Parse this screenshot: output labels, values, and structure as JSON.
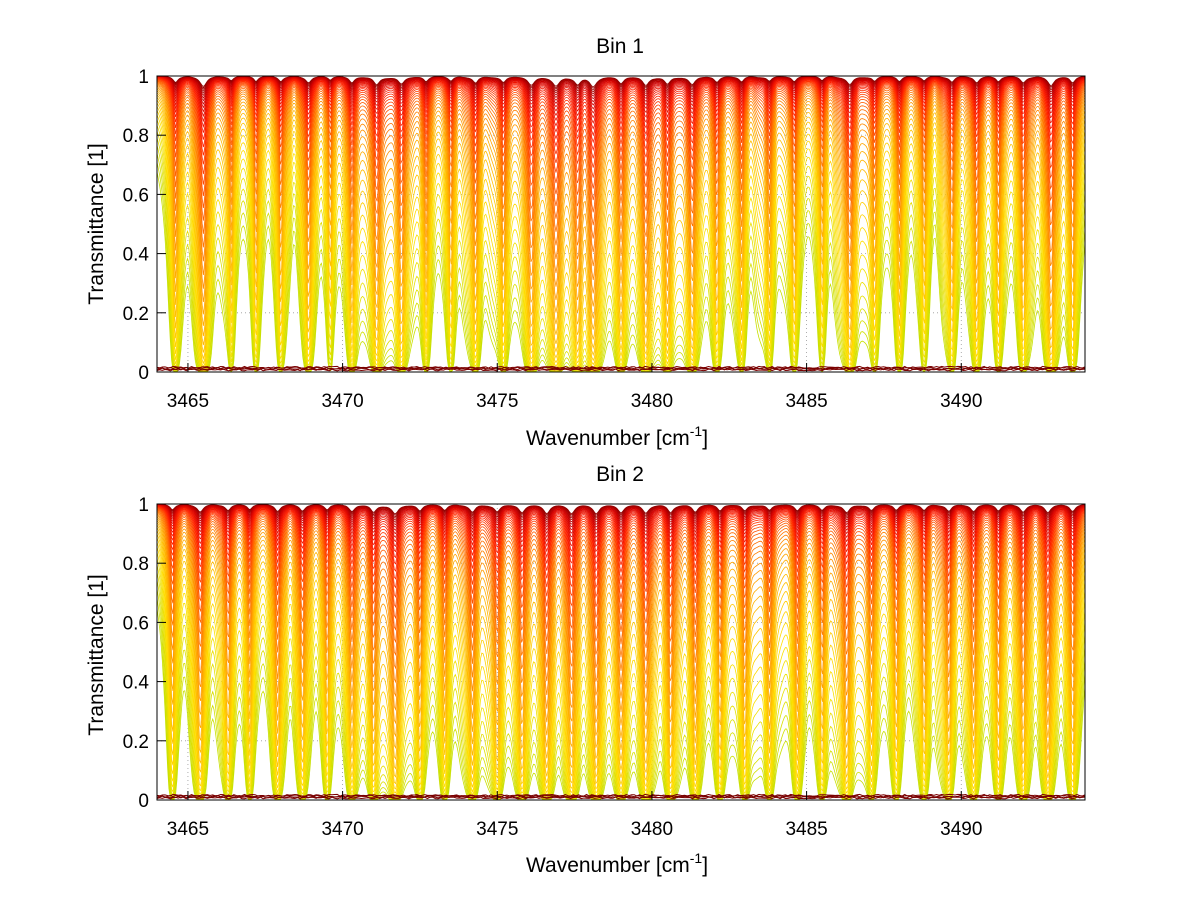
{
  "chart_data": [
    {
      "type": "line",
      "title": "Bin 1",
      "xlabel_main": "Wavenumber [cm",
      "xlabel_sup": "-1",
      "xlabel_close": "]",
      "ylabel": "Transmittance [1]",
      "xlim": [
        3464,
        3494
      ],
      "ylim": [
        0,
        1
      ],
      "xticks": [
        3465,
        3470,
        3475,
        3480,
        3485,
        3490
      ],
      "yticks": [
        0,
        0.2,
        0.4,
        0.6,
        0.8,
        1
      ],
      "ytick_labels": [
        "0",
        "0.2",
        "0.4",
        "0.6",
        "0.8",
        "1"
      ],
      "grid": "dotted",
      "n_series": 48,
      "colormap": [
        "#8b0000",
        "#d10000",
        "#ff2000",
        "#ff6a00",
        "#ffb000",
        "#ffe000",
        "#c8e000"
      ],
      "absorption_lines": [
        {
          "x": 3464.6,
          "depth": 0.5,
          "width": 0.09
        },
        {
          "x": 3465.5,
          "depth": 0.8,
          "width": 0.12
        },
        {
          "x": 3466.4,
          "depth": 0.35,
          "width": 0.08
        },
        {
          "x": 3467.2,
          "depth": 0.45,
          "width": 0.08
        },
        {
          "x": 3468.0,
          "depth": 0.4,
          "width": 0.08
        },
        {
          "x": 3468.9,
          "depth": 0.5,
          "width": 0.1
        },
        {
          "x": 3469.6,
          "depth": 0.3,
          "width": 0.08
        },
        {
          "x": 3470.3,
          "depth": 0.55,
          "width": 0.1
        },
        {
          "x": 3471.1,
          "depth": 0.7,
          "width": 0.12
        },
        {
          "x": 3471.9,
          "depth": 0.65,
          "width": 0.12
        },
        {
          "x": 3472.7,
          "depth": 0.45,
          "width": 0.09
        },
        {
          "x": 3473.5,
          "depth": 0.4,
          "width": 0.09
        },
        {
          "x": 3474.3,
          "depth": 0.55,
          "width": 0.1
        },
        {
          "x": 3475.2,
          "depth": 0.5,
          "width": 0.1
        },
        {
          "x": 3476.1,
          "depth": 0.75,
          "width": 0.13
        },
        {
          "x": 3476.9,
          "depth": 0.8,
          "width": 0.14
        },
        {
          "x": 3477.6,
          "depth": 0.6,
          "width": 0.11
        },
        {
          "x": 3478.1,
          "depth": 0.85,
          "width": 0.14
        },
        {
          "x": 3479.0,
          "depth": 0.6,
          "width": 0.11
        },
        {
          "x": 3479.8,
          "depth": 0.75,
          "width": 0.12
        },
        {
          "x": 3480.5,
          "depth": 0.65,
          "width": 0.11
        },
        {
          "x": 3481.3,
          "depth": 0.7,
          "width": 0.12
        },
        {
          "x": 3482.1,
          "depth": 0.5,
          "width": 0.1
        },
        {
          "x": 3482.9,
          "depth": 0.45,
          "width": 0.09
        },
        {
          "x": 3483.8,
          "depth": 0.4,
          "width": 0.09
        },
        {
          "x": 3484.6,
          "depth": 0.45,
          "width": 0.09
        },
        {
          "x": 3485.5,
          "depth": 0.35,
          "width": 0.08
        },
        {
          "x": 3486.4,
          "depth": 0.7,
          "width": 0.12
        },
        {
          "x": 3487.2,
          "depth": 0.4,
          "width": 0.09
        },
        {
          "x": 3488.0,
          "depth": 0.45,
          "width": 0.09
        },
        {
          "x": 3488.8,
          "depth": 0.35,
          "width": 0.08
        },
        {
          "x": 3489.7,
          "depth": 0.45,
          "width": 0.09
        },
        {
          "x": 3490.5,
          "depth": 0.55,
          "width": 0.1
        },
        {
          "x": 3491.2,
          "depth": 0.45,
          "width": 0.09
        },
        {
          "x": 3492.0,
          "depth": 0.5,
          "width": 0.1
        },
        {
          "x": 3492.9,
          "depth": 0.75,
          "width": 0.12
        },
        {
          "x": 3493.6,
          "depth": 0.55,
          "width": 0.1
        }
      ]
    },
    {
      "type": "line",
      "title": "Bin 2",
      "xlabel_main": "Wavenumber [cm",
      "xlabel_sup": "-1",
      "xlabel_close": "]",
      "ylabel": "Transmittance [1]",
      "xlim": [
        3464,
        3494
      ],
      "ylim": [
        0,
        1
      ],
      "xticks": [
        3465,
        3470,
        3475,
        3480,
        3485,
        3490
      ],
      "yticks": [
        0,
        0.2,
        0.4,
        0.6,
        0.8,
        1
      ],
      "ytick_labels": [
        "0",
        "0.2",
        "0.4",
        "0.6",
        "0.8",
        "1"
      ],
      "grid": "dotted",
      "n_series": 48,
      "colormap": [
        "#8b0000",
        "#d10000",
        "#ff2000",
        "#ff6a00",
        "#ffb000",
        "#ffe000",
        "#c8e000"
      ],
      "absorption_lines": [
        {
          "x": 3464.5,
          "depth": 0.45,
          "width": 0.09
        },
        {
          "x": 3465.4,
          "depth": 0.6,
          "width": 0.11
        },
        {
          "x": 3466.3,
          "depth": 0.5,
          "width": 0.1
        },
        {
          "x": 3467.0,
          "depth": 0.45,
          "width": 0.09
        },
        {
          "x": 3467.9,
          "depth": 0.55,
          "width": 0.1
        },
        {
          "x": 3468.7,
          "depth": 0.5,
          "width": 0.1
        },
        {
          "x": 3469.5,
          "depth": 0.45,
          "width": 0.09
        },
        {
          "x": 3470.3,
          "depth": 0.6,
          "width": 0.11
        },
        {
          "x": 3471.0,
          "depth": 0.65,
          "width": 0.11
        },
        {
          "x": 3471.7,
          "depth": 0.8,
          "width": 0.13
        },
        {
          "x": 3472.5,
          "depth": 0.55,
          "width": 0.1
        },
        {
          "x": 3473.3,
          "depth": 0.5,
          "width": 0.1
        },
        {
          "x": 3474.2,
          "depth": 0.65,
          "width": 0.11
        },
        {
          "x": 3475.0,
          "depth": 0.6,
          "width": 0.11
        },
        {
          "x": 3475.8,
          "depth": 0.7,
          "width": 0.12
        },
        {
          "x": 3476.6,
          "depth": 0.75,
          "width": 0.12
        },
        {
          "x": 3477.4,
          "depth": 0.7,
          "width": 0.12
        },
        {
          "x": 3478.2,
          "depth": 0.75,
          "width": 0.12
        },
        {
          "x": 3479.0,
          "depth": 0.7,
          "width": 0.12
        },
        {
          "x": 3479.8,
          "depth": 0.7,
          "width": 0.12
        },
        {
          "x": 3480.6,
          "depth": 0.65,
          "width": 0.11
        },
        {
          "x": 3481.4,
          "depth": 0.65,
          "width": 0.11
        },
        {
          "x": 3482.2,
          "depth": 0.55,
          "width": 0.1
        },
        {
          "x": 3483.0,
          "depth": 0.55,
          "width": 0.1
        },
        {
          "x": 3483.8,
          "depth": 0.5,
          "width": 0.1
        },
        {
          "x": 3484.7,
          "depth": 0.55,
          "width": 0.1
        },
        {
          "x": 3485.5,
          "depth": 0.5,
          "width": 0.1
        },
        {
          "x": 3486.3,
          "depth": 0.7,
          "width": 0.12
        },
        {
          "x": 3487.1,
          "depth": 0.5,
          "width": 0.1
        },
        {
          "x": 3487.9,
          "depth": 0.5,
          "width": 0.1
        },
        {
          "x": 3488.8,
          "depth": 0.5,
          "width": 0.1
        },
        {
          "x": 3489.6,
          "depth": 0.55,
          "width": 0.1
        },
        {
          "x": 3490.4,
          "depth": 0.6,
          "width": 0.11
        },
        {
          "x": 3491.2,
          "depth": 0.55,
          "width": 0.1
        },
        {
          "x": 3492.0,
          "depth": 0.6,
          "width": 0.11
        },
        {
          "x": 3492.8,
          "depth": 0.65,
          "width": 0.11
        },
        {
          "x": 3493.6,
          "depth": 0.6,
          "width": 0.11
        }
      ]
    }
  ]
}
